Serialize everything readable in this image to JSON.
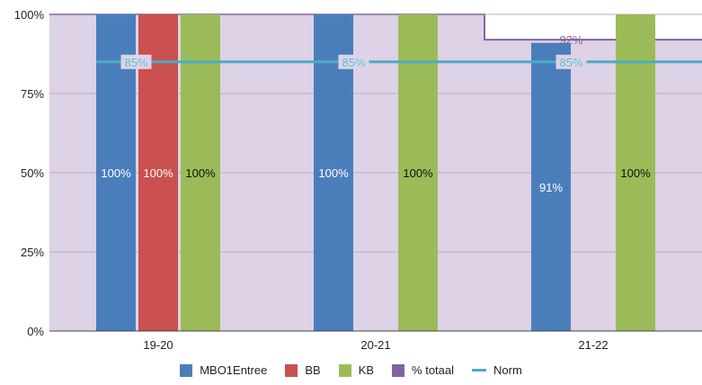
{
  "chart_data": {
    "type": "bar",
    "categories": [
      "19-20",
      "20-21",
      "21-22"
    ],
    "ylim": [
      0,
      100
    ],
    "yticks": [
      0,
      25,
      50,
      75,
      100
    ],
    "ytick_labels": [
      "0%",
      "25%",
      "50%",
      "75%",
      "100%"
    ],
    "grid": true,
    "legend_position": "bottom",
    "series": [
      {
        "name": "MBO1Entree",
        "color": "#4a7ebb",
        "values": [
          100,
          100,
          91
        ],
        "labels": [
          "100%",
          "100%",
          "91%"
        ]
      },
      {
        "name": "BB",
        "color": "#c9504f",
        "values": [
          100,
          null,
          null
        ],
        "labels": [
          "100%",
          "",
          ""
        ]
      },
      {
        "name": "KB",
        "color": "#9bbb59",
        "values": [
          100,
          100,
          100
        ],
        "labels": [
          "100%",
          "100%",
          "100%"
        ]
      }
    ],
    "area_series": {
      "name": "% totaal",
      "color": "#8064a2",
      "fill": "#ddd2e6",
      "values": [
        100,
        100,
        92
      ],
      "labels": [
        "",
        "",
        "92%"
      ]
    },
    "line_series": {
      "name": "Norm",
      "color": "#4bacc6",
      "values": [
        85,
        85,
        85
      ],
      "labels": [
        "85%",
        "85%",
        "85%"
      ]
    }
  }
}
